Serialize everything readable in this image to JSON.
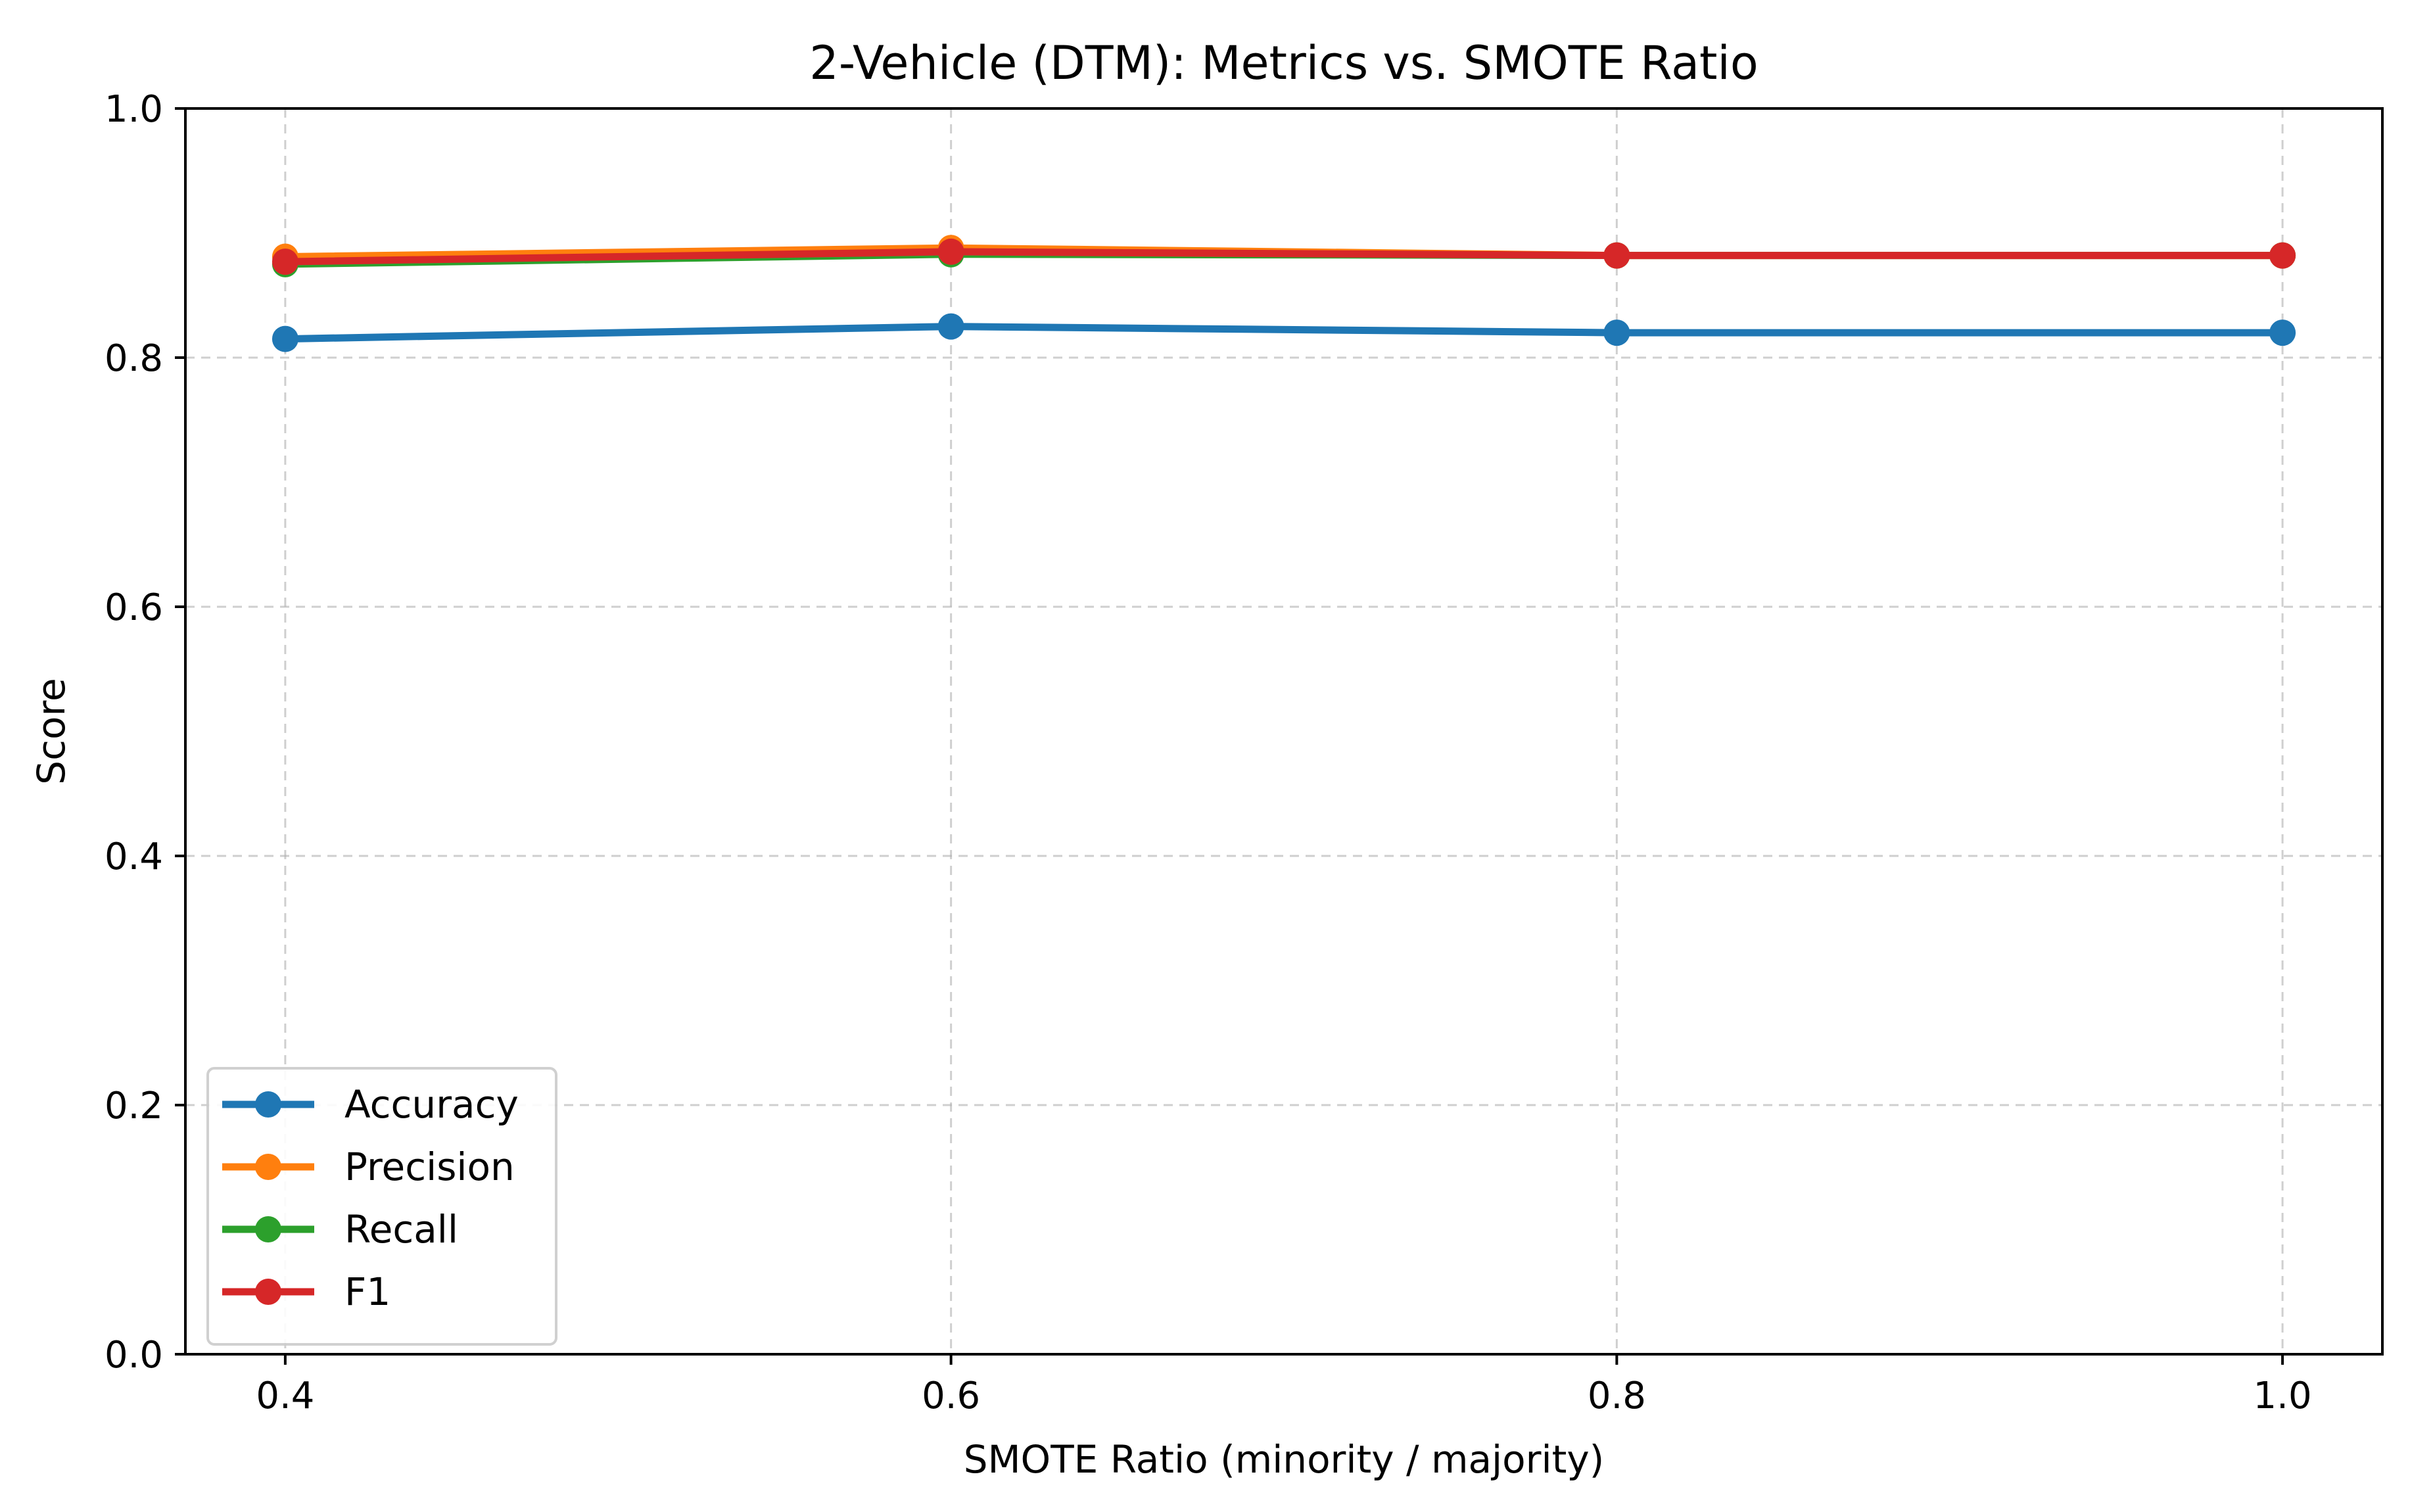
{
  "chart_data": {
    "type": "line",
    "title": "2-Vehicle (DTM): Metrics vs. SMOTE Ratio",
    "xlabel": "SMOTE Ratio (minority / majority)",
    "ylabel": "Score",
    "xlim": [
      0.37,
      1.03
    ],
    "ylim": [
      0.0,
      1.0
    ],
    "x": [
      0.4,
      0.6,
      0.8,
      1.0
    ],
    "xticks": [
      0.4,
      0.6,
      0.8,
      1.0
    ],
    "xtick_labels": [
      "0.4",
      "0.6",
      "0.8",
      "1.0"
    ],
    "yticks": [
      0.0,
      0.2,
      0.4,
      0.6,
      0.8,
      1.0
    ],
    "ytick_labels": [
      "0.0",
      "0.2",
      "0.4",
      "0.6",
      "0.8",
      "1.0"
    ],
    "grid": true,
    "legend_position": "lower-left",
    "series": [
      {
        "name": "Accuracy",
        "color": "#1f77b4",
        "values": [
          0.815,
          0.825,
          0.82,
          0.82
        ]
      },
      {
        "name": "Precision",
        "color": "#ff7f0e",
        "values": [
          0.881,
          0.888,
          0.882,
          0.882
        ]
      },
      {
        "name": "Recall",
        "color": "#2ca02c",
        "values": [
          0.875,
          0.883,
          0.882,
          0.882
        ]
      },
      {
        "name": "F1",
        "color": "#d62728",
        "values": [
          0.877,
          0.885,
          0.882,
          0.882
        ]
      }
    ]
  }
}
